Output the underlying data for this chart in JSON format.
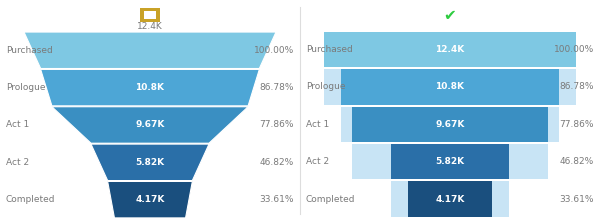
{
  "categories": [
    "Purchased",
    "Prologue",
    "Act 1",
    "Act 2",
    "Completed"
  ],
  "values": [
    "12.4K",
    "10.8K",
    "9.67K",
    "5.82K",
    "4.17K"
  ],
  "percentages": [
    "100.00%",
    "86.78%",
    "77.86%",
    "46.82%",
    "33.61%"
  ],
  "ratios": [
    1.0,
    0.8678,
    0.7786,
    0.4682,
    0.3361
  ],
  "funnel_colors": [
    "#7ec8e3",
    "#4da6d6",
    "#3a8fc2",
    "#2a6fa8",
    "#1a4f7e"
  ],
  "bar_colors": [
    "#7ec8e3",
    "#4da6d6",
    "#3a8fc2",
    "#2a6fa8",
    "#1a4f7e"
  ],
  "bar_accent_color": "#c8e4f5",
  "background_color": "#ffffff",
  "text_color_label": "#7a7a7a",
  "text_color_pct": "#7a7a7a",
  "text_color_val_white": "#ffffff",
  "text_color_val_dark": "#2a2a2a",
  "icon_funnel_color": "#c9a227",
  "icon_bar_color": "#2ecc40",
  "label_fontsize": 6.5,
  "value_fontsize": 6.5,
  "pct_fontsize": 6.5
}
